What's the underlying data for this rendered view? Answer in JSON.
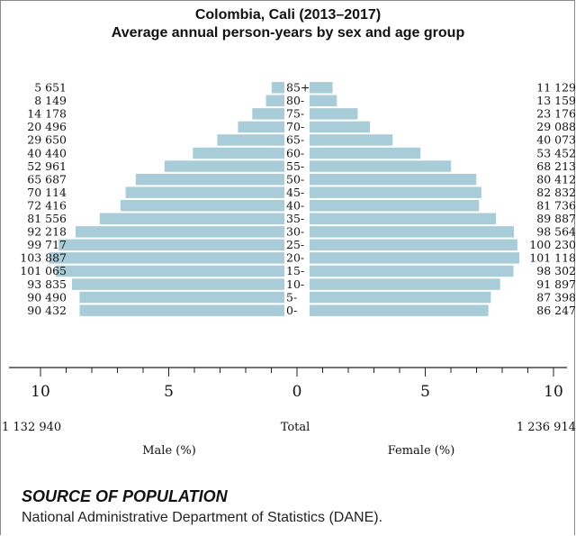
{
  "chart_data": {
    "type": "bar",
    "subtype": "population-pyramid",
    "title": "Colombia, Cali (2013–2017)",
    "subtitle": "Average annual person-years by sex and age group",
    "categories": [
      "85+",
      "80-",
      "75-",
      "70-",
      "65-",
      "60-",
      "55-",
      "50-",
      "45-",
      "40-",
      "35-",
      "30-",
      "25-",
      "20-",
      "15-",
      "10-",
      "5-",
      "0-"
    ],
    "series": [
      {
        "name": "Male",
        "values": [
          5651,
          8149,
          14178,
          20496,
          29650,
          40440,
          52961,
          65687,
          70114,
          72416,
          81556,
          92218,
          99717,
          103887,
          101065,
          93835,
          90490,
          90432
        ],
        "value_labels": [
          "5 651",
          "8 149",
          "14 178",
          "20 496",
          "29 650",
          "40 440",
          "52 961",
          "65 687",
          "70 114",
          "72 416",
          "81 556",
          "92 218",
          "99 717",
          "103 887",
          "101 065",
          "93 835",
          "90 490",
          "90 432"
        ],
        "total": "1 132 940",
        "axis_label": "Male (%)"
      },
      {
        "name": "Female",
        "values": [
          11129,
          13159,
          23176,
          29088,
          40073,
          53452,
          68213,
          80412,
          82832,
          81736,
          89887,
          98564,
          100230,
          101118,
          98302,
          91897,
          87398,
          86247
        ],
        "value_labels": [
          "11 129",
          "13 159",
          "23 176",
          "29 088",
          "40 073",
          "53 452",
          "68 213",
          "80 412",
          "82 832",
          "81 736",
          "89 887",
          "98 564",
          "100 230",
          "101 118",
          "98 302",
          "91 897",
          "87 398",
          "86 247"
        ],
        "total": "1 236 914",
        "axis_label": "Female (%)"
      }
    ],
    "total_label": "Total",
    "male_total": 1132940,
    "female_total": 1236914,
    "x_ticks": [
      "10",
      "5",
      "0",
      "5",
      "10"
    ],
    "xlim": [
      -10,
      10
    ],
    "bar_color": "#a9cdd8",
    "grid": false
  },
  "source": {
    "heading": "SOURCE OF POPULATION",
    "text": "National Administrative Department of Statistics (DANE)."
  }
}
